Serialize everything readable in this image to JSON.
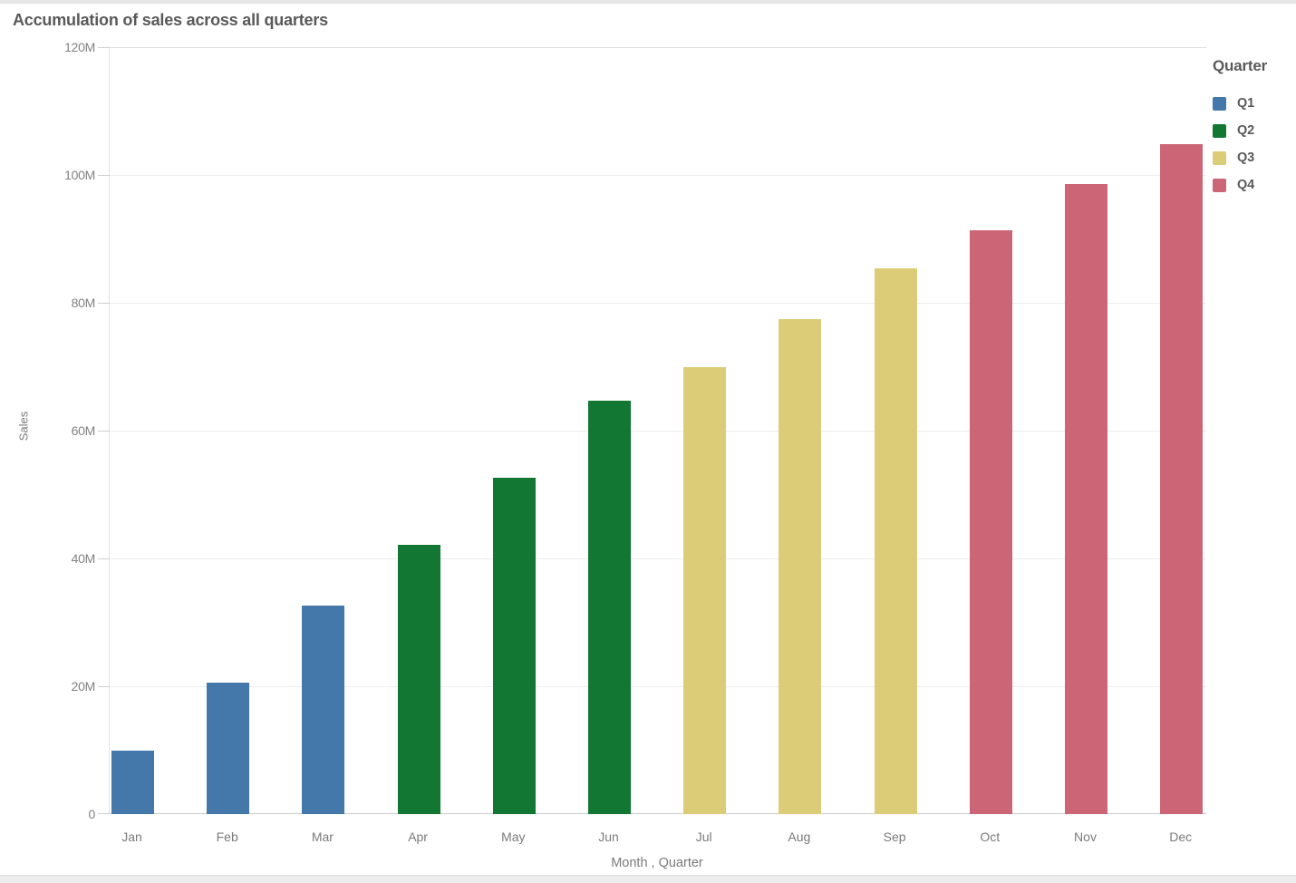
{
  "window": {
    "top_strip_color": "#e6e6e6",
    "bottom_strip_color": "#ededed"
  },
  "chart_data": {
    "type": "bar",
    "title": "Accumulation of sales across all quarters",
    "xlabel": "Month , Quarter",
    "ylabel": "Sales",
    "categories": [
      "Jan",
      "Feb",
      "Mar",
      "Apr",
      "May",
      "Jun",
      "Jul",
      "Aug",
      "Sep",
      "Oct",
      "Nov",
      "Dec"
    ],
    "values_unit": "millions",
    "series": [
      {
        "name": "Q1",
        "color": "#4477aa",
        "months": [
          "Jan",
          "Feb",
          "Mar"
        ],
        "values": [
          10.0,
          20.6,
          32.6
        ]
      },
      {
        "name": "Q2",
        "color": "#117733",
        "months": [
          "Apr",
          "May",
          "Jun"
        ],
        "values": [
          42.2,
          52.6,
          64.7
        ]
      },
      {
        "name": "Q3",
        "color": "#ddcc77",
        "months": [
          "Jul",
          "Aug",
          "Sep"
        ],
        "values": [
          69.9,
          77.5,
          85.4
        ]
      },
      {
        "name": "Q4",
        "color": "#cc6677",
        "months": [
          "Oct",
          "Nov",
          "Dec"
        ],
        "values": [
          91.4,
          98.6,
          104.8
        ]
      }
    ],
    "y_ticks": [
      {
        "value_m": 0,
        "label": "0"
      },
      {
        "value_m": 20,
        "label": "20M"
      },
      {
        "value_m": 40,
        "label": "40M"
      },
      {
        "value_m": 60,
        "label": "60M"
      },
      {
        "value_m": 80,
        "label": "80M"
      },
      {
        "value_m": 100,
        "label": "100M"
      },
      {
        "value_m": 120,
        "label": "120M"
      }
    ],
    "ylim_m": [
      0,
      120
    ],
    "grid": true,
    "legend": {
      "title": "Quarter",
      "position": "top-right",
      "entries": [
        {
          "label": "Q1",
          "color": "#4477aa"
        },
        {
          "label": "Q2",
          "color": "#117733"
        },
        {
          "label": "Q3",
          "color": "#ddcc77"
        },
        {
          "label": "Q4",
          "color": "#cc6677"
        }
      ]
    }
  }
}
